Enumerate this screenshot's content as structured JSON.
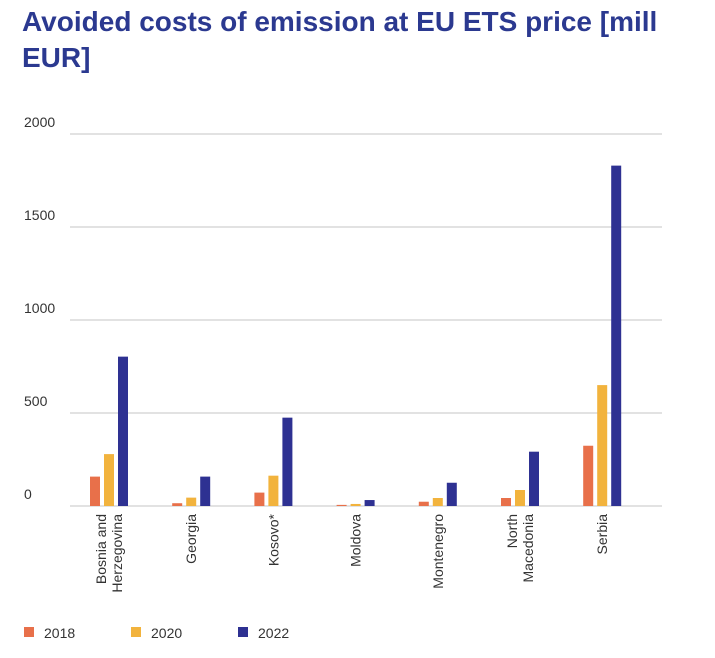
{
  "chart_data": {
    "type": "bar",
    "title": "Avoided costs of emission at EU ETS price [mill EUR]",
    "xlabel": "",
    "ylabel": "",
    "categories": [
      "Bosnia and Herzegovina",
      "Georgia",
      "Kosovo*",
      "Moldova",
      "Montenegro",
      "North Macedonia",
      "Serbia"
    ],
    "category_lines": [
      [
        "Bosnia and",
        "Herzegovina"
      ],
      [
        "Georgia"
      ],
      [
        "Kosovo*"
      ],
      [
        "Moldova"
      ],
      [
        "Montenegro"
      ],
      [
        "North",
        "Macedonia"
      ],
      [
        "Serbia"
      ]
    ],
    "series": [
      {
        "name": "2018",
        "color": "#e8704a",
        "values": [
          158,
          15,
          72,
          6,
          23,
          43,
          324
        ]
      },
      {
        "name": "2020",
        "color": "#f2b33d",
        "values": [
          279,
          45,
          163,
          11,
          43,
          86,
          650
        ]
      },
      {
        "name": "2022",
        "color": "#2e3192",
        "values": [
          803,
          158,
          475,
          32,
          125,
          292,
          1830
        ]
      }
    ],
    "ylim": [
      0,
      2000
    ],
    "yticks": [
      0,
      500,
      1000,
      1500,
      2000
    ],
    "grid": true,
    "legend": "bottom-left"
  }
}
